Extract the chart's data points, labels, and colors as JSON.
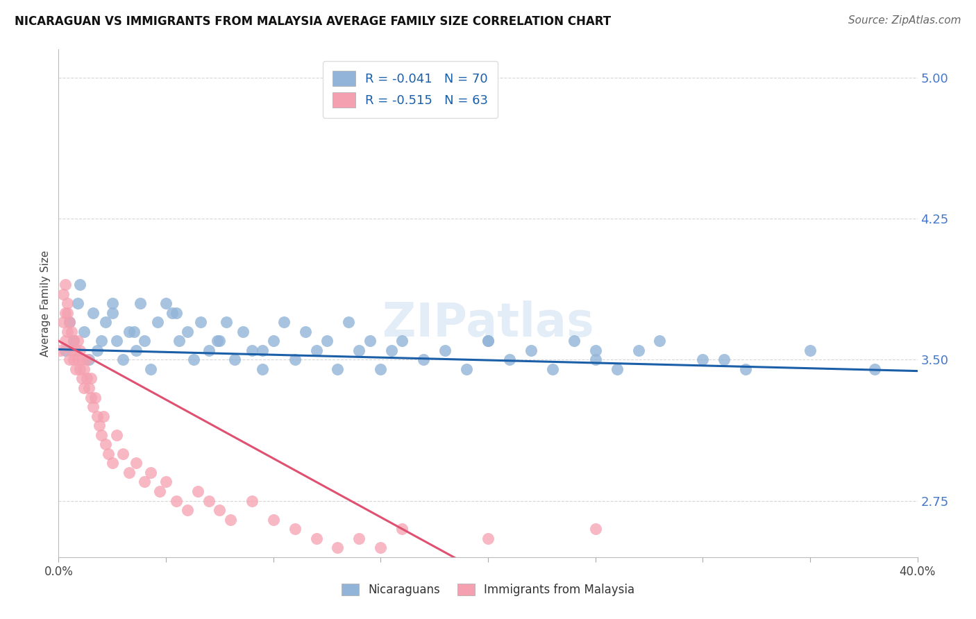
{
  "title": "NICARAGUAN VS IMMIGRANTS FROM MALAYSIA AVERAGE FAMILY SIZE CORRELATION CHART",
  "source_text": "Source: ZipAtlas.com",
  "ylabel": "Average Family Size",
  "xlim": [
    0.0,
    0.4
  ],
  "ylim": [
    2.45,
    5.15
  ],
  "yticks": [
    2.75,
    3.5,
    4.25,
    5.0
  ],
  "xticks": [
    0.0,
    0.05,
    0.1,
    0.15,
    0.2,
    0.25,
    0.3,
    0.35,
    0.4
  ],
  "background_color": "#ffffff",
  "grid_color": "#cccccc",
  "blue_color": "#92b4d8",
  "pink_color": "#f5a0b0",
  "trend_blue": "#1a5fa8",
  "trend_pink": "#e05070",
  "r_blue": -0.041,
  "n_blue": 70,
  "r_pink": -0.515,
  "n_pink": 63,
  "legend_label_blue": "Nicaraguans",
  "legend_label_pink": "Immigrants from Malaysia",
  "watermark": "ZIPatlas",
  "blue_scatter_x": [
    0.003,
    0.005,
    0.007,
    0.009,
    0.01,
    0.012,
    0.014,
    0.016,
    0.018,
    0.02,
    0.022,
    0.025,
    0.027,
    0.03,
    0.033,
    0.036,
    0.038,
    0.04,
    0.043,
    0.046,
    0.05,
    0.053,
    0.056,
    0.06,
    0.063,
    0.066,
    0.07,
    0.074,
    0.078,
    0.082,
    0.086,
    0.09,
    0.095,
    0.1,
    0.105,
    0.11,
    0.115,
    0.12,
    0.125,
    0.13,
    0.135,
    0.14,
    0.145,
    0.15,
    0.155,
    0.16,
    0.17,
    0.18,
    0.19,
    0.2,
    0.21,
    0.22,
    0.23,
    0.24,
    0.25,
    0.26,
    0.27,
    0.28,
    0.3,
    0.32,
    0.025,
    0.035,
    0.055,
    0.075,
    0.095,
    0.2,
    0.25,
    0.31,
    0.35,
    0.38
  ],
  "blue_scatter_y": [
    3.55,
    3.7,
    3.6,
    3.8,
    3.9,
    3.65,
    3.5,
    3.75,
    3.55,
    3.6,
    3.7,
    3.75,
    3.6,
    3.5,
    3.65,
    3.55,
    3.8,
    3.6,
    3.45,
    3.7,
    3.8,
    3.75,
    3.6,
    3.65,
    3.5,
    3.7,
    3.55,
    3.6,
    3.7,
    3.5,
    3.65,
    3.55,
    3.45,
    3.6,
    3.7,
    3.5,
    3.65,
    3.55,
    3.6,
    3.45,
    3.7,
    3.55,
    3.6,
    3.45,
    3.55,
    3.6,
    3.5,
    3.55,
    3.45,
    3.6,
    3.5,
    3.55,
    3.45,
    3.6,
    3.5,
    3.45,
    3.55,
    3.6,
    3.5,
    3.45,
    3.8,
    3.65,
    3.75,
    3.6,
    3.55,
    3.6,
    3.55,
    3.5,
    3.55,
    3.45
  ],
  "pink_scatter_x": [
    0.001,
    0.002,
    0.003,
    0.003,
    0.004,
    0.004,
    0.005,
    0.005,
    0.006,
    0.006,
    0.007,
    0.007,
    0.008,
    0.008,
    0.009,
    0.009,
    0.01,
    0.01,
    0.011,
    0.011,
    0.012,
    0.012,
    0.013,
    0.013,
    0.014,
    0.015,
    0.015,
    0.016,
    0.017,
    0.018,
    0.019,
    0.02,
    0.021,
    0.022,
    0.023,
    0.025,
    0.027,
    0.03,
    0.033,
    0.036,
    0.04,
    0.043,
    0.047,
    0.05,
    0.055,
    0.06,
    0.065,
    0.07,
    0.075,
    0.08,
    0.09,
    0.1,
    0.11,
    0.12,
    0.13,
    0.14,
    0.15,
    0.16,
    0.2,
    0.25,
    0.002,
    0.003,
    0.004
  ],
  "pink_scatter_y": [
    3.55,
    3.7,
    3.75,
    3.6,
    3.65,
    3.8,
    3.5,
    3.7,
    3.55,
    3.65,
    3.5,
    3.6,
    3.45,
    3.55,
    3.5,
    3.6,
    3.45,
    3.55,
    3.4,
    3.5,
    3.35,
    3.45,
    3.4,
    3.5,
    3.35,
    3.3,
    3.4,
    3.25,
    3.3,
    3.2,
    3.15,
    3.1,
    3.2,
    3.05,
    3.0,
    2.95,
    3.1,
    3.0,
    2.9,
    2.95,
    2.85,
    2.9,
    2.8,
    2.85,
    2.75,
    2.7,
    2.8,
    2.75,
    2.7,
    2.65,
    2.75,
    2.65,
    2.6,
    2.55,
    2.5,
    2.55,
    2.5,
    2.6,
    2.55,
    2.6,
    3.85,
    3.9,
    3.75
  ]
}
